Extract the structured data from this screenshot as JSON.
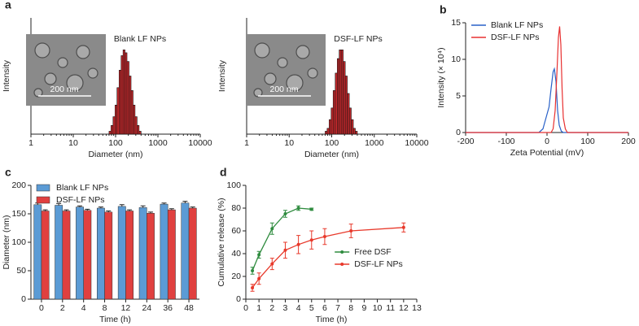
{
  "chart_data": [
    {
      "type": "histogram",
      "panel": "a",
      "title": "Blank LF NPs",
      "xlabel": "Diameter (nm)",
      "ylabel": "Intensity",
      "xlog": true,
      "xlim": [
        1,
        10000
      ],
      "xticks": [
        1,
        10,
        100,
        1000,
        10000
      ],
      "ylim": [
        0,
        20
      ],
      "color": "#c0282b",
      "inset_label": "200 nm",
      "bins": [
        70,
        78,
        87,
        97,
        108,
        121,
        135,
        150,
        167,
        186,
        208,
        232,
        259,
        288,
        322,
        359,
        400
      ],
      "values": [
        0.5,
        1.5,
        3,
        5,
        8,
        11,
        13.5,
        14.5,
        14,
        12.5,
        10,
        7.5,
        5,
        3,
        1.5,
        0.5
      ]
    },
    {
      "type": "histogram",
      "title": "DSF-LF NPs",
      "xlabel": "Diameter (nm)",
      "ylabel": "Intensity",
      "xlog": true,
      "xlim": [
        1,
        10000
      ],
      "xticks": [
        1,
        10,
        100,
        1000,
        10000
      ],
      "ylim": [
        0,
        20
      ],
      "color": "#c0282b",
      "inset_label": "200 nm",
      "bins": [
        70,
        78,
        87,
        97,
        108,
        121,
        135,
        150,
        167,
        186,
        208,
        232,
        259,
        288,
        322,
        359,
        400
      ],
      "values": [
        0.5,
        1,
        2.5,
        4.5,
        7.5,
        10.5,
        13,
        14.5,
        14.5,
        12.5,
        10,
        7,
        4.5,
        2.5,
        1,
        0.5
      ]
    },
    {
      "type": "line",
      "panel": "b",
      "xlabel": "Zeta Potential (mV)",
      "ylabel": "Intensity (× 10⁴)",
      "xlim": [
        -200,
        200
      ],
      "xticks": [
        -200,
        -100,
        0,
        100,
        200
      ],
      "ylim": [
        0,
        15
      ],
      "yticks": [
        0,
        5,
        10,
        15
      ],
      "legend": "upper left",
      "series": [
        {
          "name": "Blank LF NPs",
          "color": "#2860c8",
          "x": [
            -200,
            -20,
            -10,
            -5,
            0,
            5,
            10,
            15,
            18,
            22,
            26,
            30,
            35,
            40,
            200
          ],
          "values": [
            0,
            0,
            0.5,
            1.5,
            2.5,
            3.5,
            6,
            8.3,
            8.7,
            7,
            3,
            1,
            0.2,
            0,
            0
          ]
        },
        {
          "name": "DSF-LF NPs",
          "color": "#e83030",
          "x": [
            -200,
            10,
            15,
            20,
            25,
            28,
            31,
            34,
            37,
            40,
            45,
            50,
            200
          ],
          "values": [
            0,
            0,
            0.5,
            3,
            9,
            13,
            14.5,
            12,
            6,
            2,
            0.5,
            0,
            0
          ]
        }
      ]
    },
    {
      "type": "bar",
      "panel": "c",
      "xlabel": "Time (h)",
      "ylabel": "Diameter (nm)",
      "categories": [
        "0",
        "2",
        "4",
        "8",
        "12",
        "24",
        "36",
        "48"
      ],
      "ylim": [
        0,
        200
      ],
      "yticks": [
        0,
        50,
        100,
        150,
        200
      ],
      "legend": "upper left",
      "series": [
        {
          "name": "Blank LF NPs",
          "color": "#5b9bd5",
          "values": [
            166,
            165,
            162,
            160,
            163,
            161,
            167,
            169
          ],
          "errors": [
            3,
            3,
            2,
            2,
            3,
            3,
            2,
            3
          ]
        },
        {
          "name": "DSF-LF NPs",
          "color": "#e0403f",
          "values": [
            155,
            155,
            156,
            153,
            155,
            151,
            157,
            160
          ],
          "errors": [
            2,
            2,
            2,
            2,
            2,
            2,
            2,
            2
          ]
        }
      ]
    },
    {
      "type": "errorline",
      "panel": "d",
      "xlabel": "Time (h)",
      "ylabel": "Cumulative release (%)",
      "xlim": [
        0,
        13
      ],
      "xticks": [
        0,
        1,
        2,
        3,
        4,
        5,
        6,
        7,
        8,
        9,
        10,
        11,
        12,
        13
      ],
      "ylim": [
        0,
        100
      ],
      "yticks": [
        0,
        20,
        40,
        60,
        80,
        100
      ],
      "legend": "center right",
      "series": [
        {
          "name": "Free DSF",
          "color": "#2e8b3e",
          "x": [
            0.5,
            1,
            2,
            3,
            4,
            5
          ],
          "values": [
            25,
            39,
            62,
            75,
            80,
            79
          ],
          "errors": [
            3,
            3,
            5,
            3,
            2,
            1
          ]
        },
        {
          "name": "DSF-LF NPs",
          "color": "#e8392b",
          "x": [
            0.5,
            1,
            2,
            3,
            4,
            5,
            6,
            8,
            12
          ],
          "values": [
            10,
            18,
            31,
            43,
            48,
            52,
            55,
            60,
            63
          ],
          "errors": [
            3,
            5,
            5,
            7,
            8,
            8,
            7,
            6,
            4
          ]
        }
      ]
    }
  ]
}
